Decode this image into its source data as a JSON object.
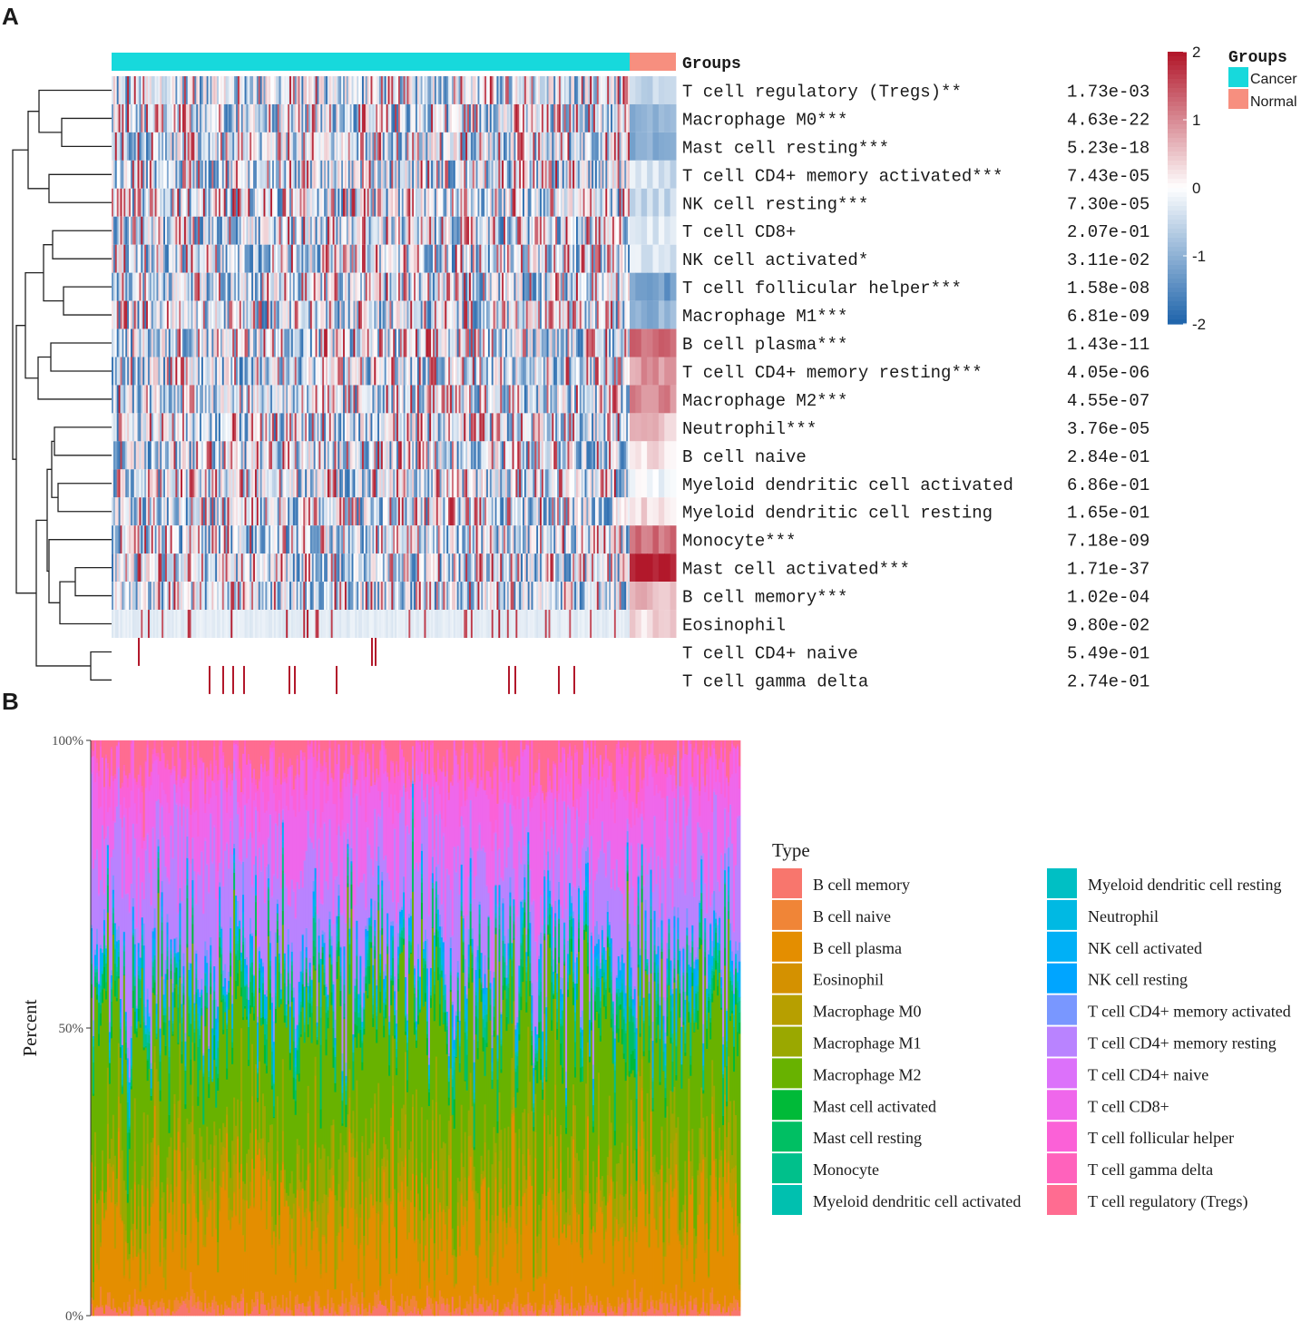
{
  "panels": {
    "a": "A",
    "b": "B"
  },
  "heatmap": {
    "groups_title": "Groups",
    "groups_annotation_label": "Groups",
    "group_names": [
      "Cancer",
      "Normal"
    ],
    "group_colors": [
      "#17d9dc",
      "#f78f7f"
    ],
    "group_fraction": {
      "Cancer": 0.918,
      "Normal": 0.082
    },
    "color_scale": {
      "min": -2,
      "max": 2,
      "ticks": [
        2,
        1,
        0,
        -1,
        -2
      ],
      "low": "#2166ac",
      "mid": "#ffffff",
      "high": "#b2182b"
    },
    "rows": [
      {
        "label": "T cell regulatory (Tregs)**",
        "p": "1.73e-03",
        "normal_z": -0.6
      },
      {
        "label": "Macrophage M0***",
        "p": "4.63e-22",
        "normal_z": -1.0
      },
      {
        "label": "Mast cell resting***",
        "p": "5.23e-18",
        "normal_z": -1.1
      },
      {
        "label": "T cell CD4+ memory activated***",
        "p": "7.43e-05",
        "normal_z": -0.4
      },
      {
        "label": "NK cell resting***",
        "p": "7.30e-05",
        "normal_z": -0.5
      },
      {
        "label": "T cell CD8+",
        "p": "2.07e-01",
        "normal_z": -0.3
      },
      {
        "label": "NK cell activated*",
        "p": "3.11e-02",
        "normal_z": -0.4
      },
      {
        "label": "T cell follicular helper***",
        "p": "1.58e-08",
        "normal_z": -1.3
      },
      {
        "label": "Macrophage M1***",
        "p": "6.81e-09",
        "normal_z": -1.0
      },
      {
        "label": "B cell plasma***",
        "p": "1.43e-11",
        "normal_z": 1.3
      },
      {
        "label": "T cell CD4+ memory resting***",
        "p": "4.05e-06",
        "normal_z": 0.9
      },
      {
        "label": "Macrophage M2***",
        "p": "4.55e-07",
        "normal_z": 1.0
      },
      {
        "label": "Neutrophil***",
        "p": "3.76e-05",
        "normal_z": 0.5
      },
      {
        "label": "B cell naive",
        "p": "2.84e-01",
        "normal_z": 0.3
      },
      {
        "label": "Myeloid dendritic cell activated",
        "p": "6.86e-01",
        "normal_z": -0.1
      },
      {
        "label": "Myeloid dendritic cell resting",
        "p": "1.65e-01",
        "normal_z": 0.3
      },
      {
        "label": "Monocyte***",
        "p": "7.18e-09",
        "normal_z": 1.2
      },
      {
        "label": "Mast cell activated***",
        "p": "1.71e-37",
        "normal_z": 2.0
      },
      {
        "label": "B cell memory***",
        "p": "1.02e-04",
        "normal_z": 0.6
      },
      {
        "label": "Eosinophil",
        "p": "9.80e-02",
        "normal_z": 0.3
      },
      {
        "label": "T cell CD4+ naive",
        "p": "5.49e-01",
        "normal_z": 0.0
      },
      {
        "label": "T cell gamma delta",
        "p": "2.74e-01",
        "normal_z": 0.0
      }
    ]
  },
  "chart_data": {
    "type": "bar",
    "stacked": true,
    "title": "",
    "xlabel": "",
    "ylabel": "Percent",
    "y_ticks": [
      "0%",
      "50%",
      "100%"
    ],
    "ylim": [
      0,
      1
    ],
    "legend_title": "Type",
    "legend_placement": "right",
    "n_samples": 360,
    "series": [
      {
        "name": "B cell memory",
        "color": "#f8766d",
        "mean": 0.01
      },
      {
        "name": "B cell naive",
        "color": "#f08537",
        "mean": 0.012
      },
      {
        "name": "B cell plasma",
        "color": "#e48e00",
        "mean": 0.15
      },
      {
        "name": "Eosinophil",
        "color": "#d49100",
        "mean": 0.002
      },
      {
        "name": "Macrophage M0",
        "color": "#b79f00",
        "mean": 0.04
      },
      {
        "name": "Macrophage M1",
        "color": "#9aa800",
        "mean": 0.07
      },
      {
        "name": "Macrophage M2",
        "color": "#68b200",
        "mean": 0.23
      },
      {
        "name": "Mast cell activated",
        "color": "#00ba38",
        "mean": 0.015
      },
      {
        "name": "Mast cell resting",
        "color": "#00bf63",
        "mean": 0.03
      },
      {
        "name": "Monocyte",
        "color": "#00c08b",
        "mean": 0.015
      },
      {
        "name": "Myeloid dendritic cell activated",
        "color": "#00c0af",
        "mean": 0.006
      },
      {
        "name": "Myeloid dendritic cell resting",
        "color": "#00bfc4",
        "mean": 0.005
      },
      {
        "name": "Neutrophil",
        "color": "#00b9e3",
        "mean": 0.008
      },
      {
        "name": "NK cell activated",
        "color": "#00b0f6",
        "mean": 0.02
      },
      {
        "name": "NK cell resting",
        "color": "#00a5ff",
        "mean": 0.01
      },
      {
        "name": "T cell CD4+ memory activated",
        "color": "#7997ff",
        "mean": 0.015
      },
      {
        "name": "T cell CD4+ memory resting",
        "color": "#b983ff",
        "mean": 0.16
      },
      {
        "name": "T cell CD4+ naive",
        "color": "#dc71fa",
        "mean": 0.002
      },
      {
        "name": "T cell CD8+",
        "color": "#ef67eb",
        "mean": 0.12
      },
      {
        "name": "T cell follicular helper",
        "color": "#fb61d7",
        "mean": 0.04
      },
      {
        "name": "T cell gamma delta",
        "color": "#ff62bc",
        "mean": 0.005
      },
      {
        "name": "T cell regulatory (Tregs)",
        "color": "#ff6c91",
        "mean": 0.035
      }
    ]
  }
}
